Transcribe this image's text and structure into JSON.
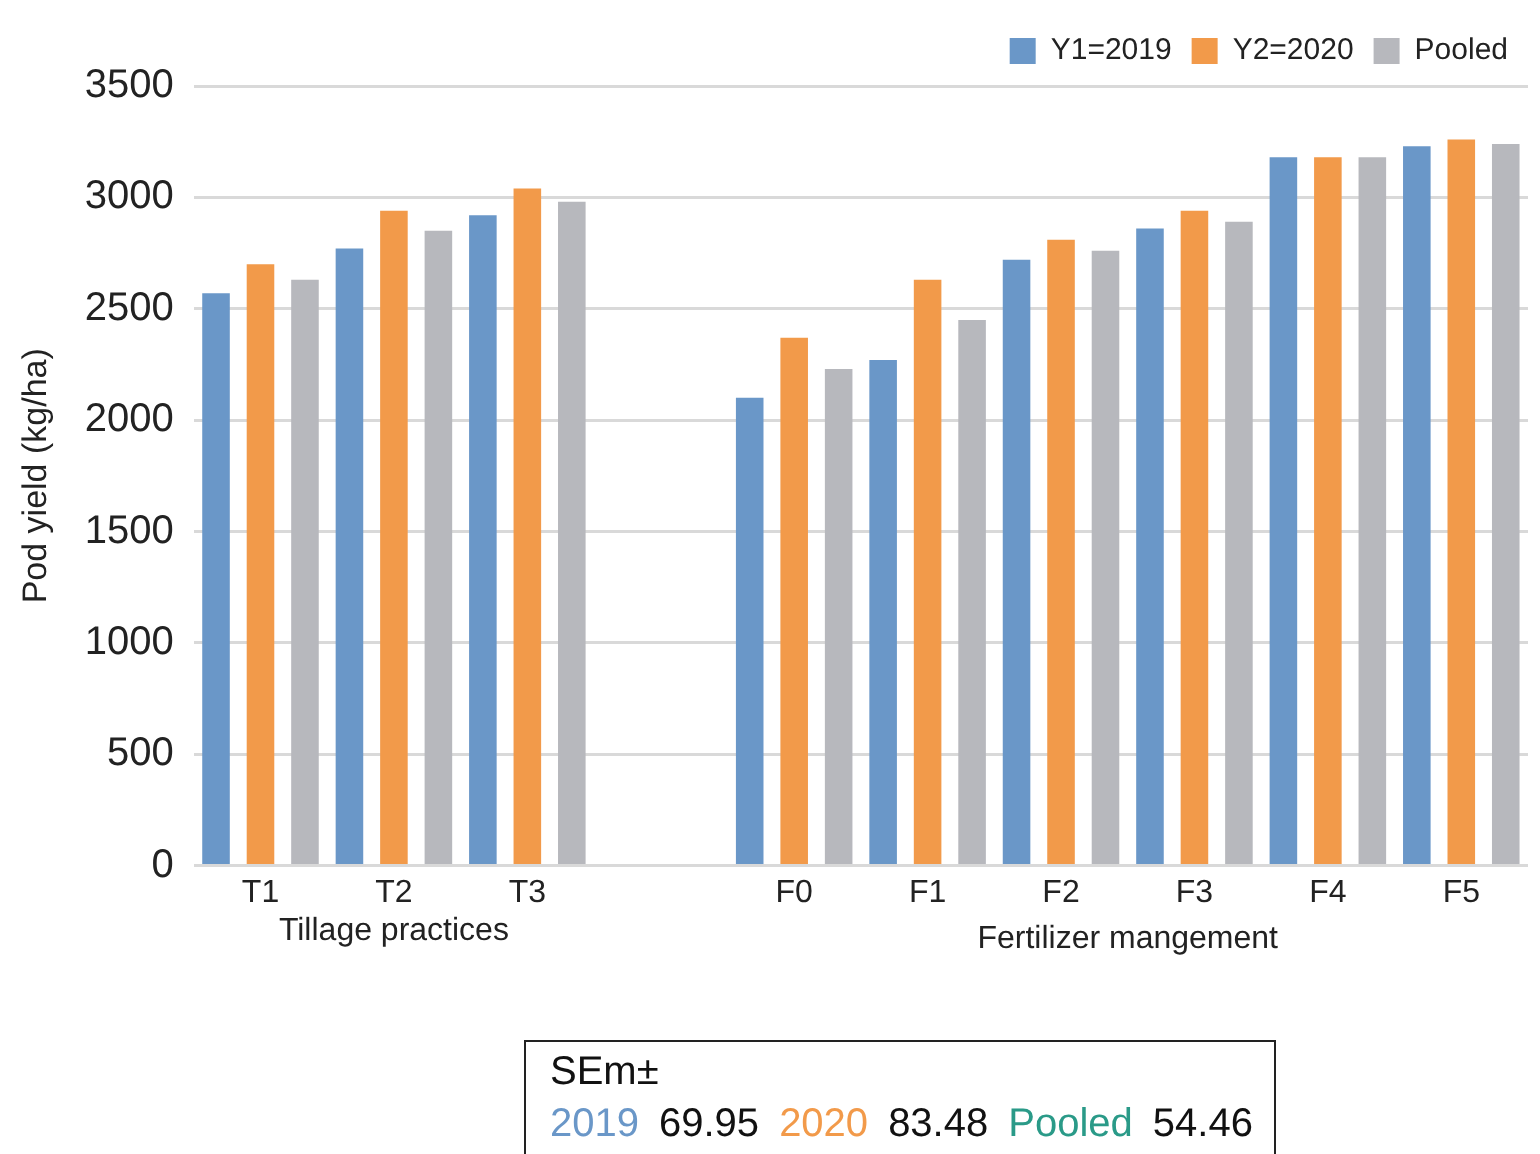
{
  "chart_data": {
    "type": "bar",
    "ylabel": "Pod yield (kg/ha)",
    "categories": [
      "T1",
      "T2",
      "T3",
      null,
      "F0",
      "F1",
      "F2",
      "F3",
      "F4",
      "F5"
    ],
    "series": [
      {
        "name": "Y1=2019",
        "color": "#6a97c8",
        "values": [
          2570,
          2770,
          2920,
          null,
          2100,
          2270,
          2720,
          2860,
          3180,
          3230
        ]
      },
      {
        "name": "Y2=2020",
        "color": "#f29a4a",
        "values": [
          2700,
          2940,
          3040,
          null,
          2370,
          2630,
          2810,
          2940,
          3180,
          3260
        ]
      },
      {
        "name": "Pooled",
        "color": "#b7b8bd",
        "values": [
          2630,
          2850,
          2980,
          null,
          2230,
          2450,
          2760,
          2890,
          3180,
          3240
        ]
      }
    ],
    "ylim": [
      0,
      3500
    ],
    "yticks": [
      0,
      500,
      1000,
      1500,
      2000,
      2500,
      3000,
      3500
    ],
    "grid": "y",
    "legend": "top right",
    "annotations": [
      "Tillage practices",
      "Fertilizer mangement",
      "SEm±",
      "2019",
      "69.95",
      "2020",
      "83.48",
      "Pooled",
      "54.46"
    ]
  }
}
